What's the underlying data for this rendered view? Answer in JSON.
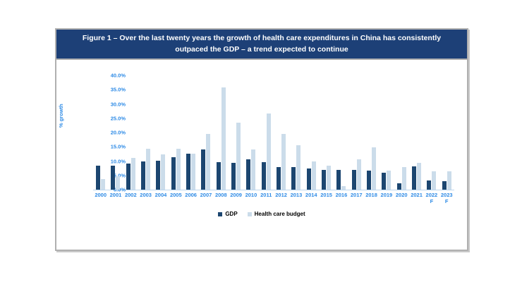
{
  "figure": {
    "title": "Figure 1 – Over the last twenty years the growth of health care expenditures in China has consistently outpaced the GDP – a trend expected to continue",
    "header_bg_color": "#1d4077",
    "header_text_color": "#ffffff",
    "border_color": "#b0b0b0"
  },
  "chart_data": {
    "type": "bar",
    "title": "Figure 1 – Over the last twenty years the growth of health care expenditures in China has consistently outpaced the GDP – a trend expected to continue",
    "xlabel": "",
    "ylabel": "% growth",
    "ylim": [
      0,
      40
    ],
    "ytick_step": 5,
    "ytick_labels": [
      "0.0%",
      "5.0%",
      "10.0%",
      "15.0%",
      "20.0%",
      "25.0%",
      "30.0%",
      "35.0%",
      "40.0%"
    ],
    "grid": false,
    "legend_position": "bottom-center",
    "categories": [
      "2000",
      "2001",
      "2002",
      "2003",
      "2004",
      "2005",
      "2006",
      "2007",
      "2008",
      "2009",
      "2010",
      "2011",
      "2012",
      "2013",
      "2014",
      "2015",
      "2016",
      "2017",
      "2018",
      "2019",
      "2020",
      "2021",
      "2022\nF",
      "2023\nF"
    ],
    "series": [
      {
        "name": "GDP",
        "color": "#1c4670",
        "values": [
          8.5,
          8.3,
          9.1,
          10.0,
          10.1,
          11.4,
          12.7,
          14.2,
          9.7,
          9.4,
          10.6,
          9.6,
          7.9,
          7.8,
          7.4,
          7.0,
          6.8,
          6.9,
          6.7,
          6.0,
          2.2,
          8.1,
          3.3,
          3.0
        ]
      },
      {
        "name": "Health care budget",
        "color": "#cbdcea",
        "values": [
          3.8,
          4.7,
          11.2,
          14.3,
          12.3,
          14.3,
          12.5,
          19.5,
          35.9,
          23.4,
          14.1,
          26.7,
          19.5,
          15.6,
          10.0,
          8.5,
          1.3,
          10.5,
          14.8,
          6.6,
          8.0,
          9.4,
          6.4,
          6.4
        ]
      }
    ],
    "axis_text_color": "#2e8be6",
    "axis_line_color": "#bdd7ee"
  },
  "legend": {
    "items": [
      {
        "label": "GDP",
        "color": "#1c4670"
      },
      {
        "label": "Health care budget",
        "color": "#cbdcea"
      }
    ]
  }
}
